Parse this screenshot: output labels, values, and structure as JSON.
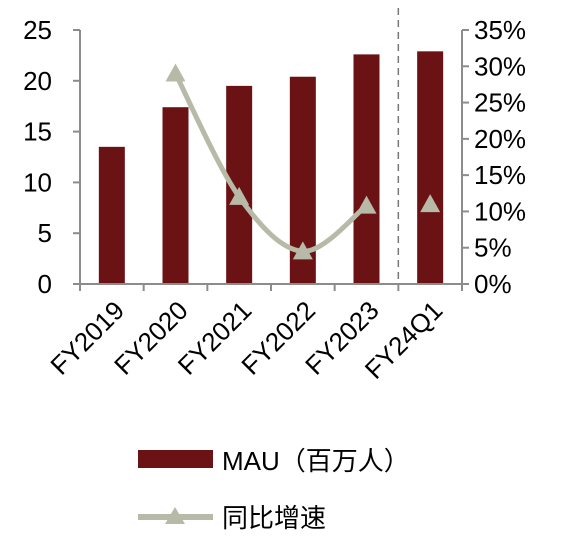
{
  "chart_data": {
    "type": "bar",
    "categories": [
      "FY2019",
      "FY2020",
      "FY2021",
      "FY2022",
      "FY2023",
      "FY24Q1"
    ],
    "series": [
      {
        "name": "MAU（百万人）",
        "type": "bar",
        "axis": "left",
        "color": "#6b1214",
        "values": [
          13.5,
          17.4,
          19.5,
          20.4,
          22.6,
          22.9
        ]
      },
      {
        "name": "同比增速",
        "type": "line",
        "axis": "right",
        "color": "#b8baa8",
        "marker": "triangle",
        "values": [
          null,
          0.29,
          0.12,
          0.045,
          0.108,
          0.11
        ],
        "connected": [
          false,
          true,
          true,
          true,
          true,
          false
        ]
      }
    ],
    "y_left": {
      "min": 0,
      "max": 25,
      "ticks": [
        "0",
        "5",
        "10",
        "15",
        "20",
        "25"
      ]
    },
    "y_right": {
      "min": 0,
      "max": 0.35,
      "ticks": [
        "0%",
        "5%",
        "10%",
        "15%",
        "20%",
        "25%",
        "30%",
        "35%"
      ]
    },
    "separator_before_category": 5,
    "legend_position": "bottom",
    "grid": false
  }
}
